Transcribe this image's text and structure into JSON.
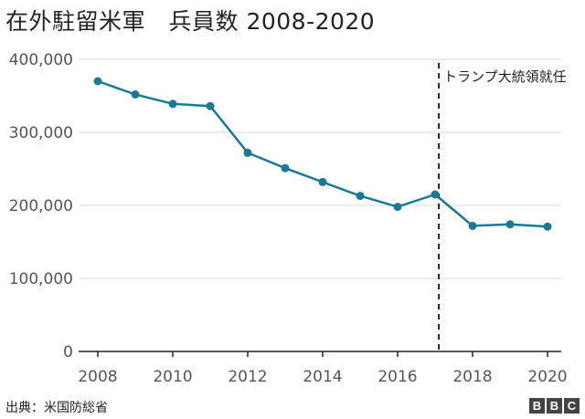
{
  "title": "在外駐留米軍　兵員数  2008-2020",
  "source": "出典：米国防総省",
  "logo": [
    "B",
    "B",
    "C"
  ],
  "colors": {
    "line": "#1a7a96",
    "grid": "#d9d9d9",
    "axis": "#222222",
    "text": "#555555"
  },
  "chart_data": {
    "type": "line",
    "title": "在外駐留米軍　兵員数  2008-2020",
    "xlabel": "",
    "ylabel": "",
    "x": [
      2008,
      2009,
      2010,
      2011,
      2012,
      2013,
      2014,
      2015,
      2016,
      2017,
      2018,
      2019,
      2020
    ],
    "series": [
      {
        "name": "兵員数",
        "values": [
          370000,
          352000,
          339000,
          336000,
          272000,
          251000,
          232000,
          213000,
          198000,
          215000,
          172000,
          174000,
          171000
        ]
      }
    ],
    "xlim": [
      2008,
      2020
    ],
    "ylim": [
      0,
      400000
    ],
    "yticks": [
      0,
      100000,
      200000,
      300000,
      400000
    ],
    "ytick_labels": [
      "0",
      "100,000",
      "200,000",
      "300,000",
      "400,000"
    ],
    "xticks": [
      2008,
      2010,
      2012,
      2014,
      2016,
      2018,
      2020
    ],
    "xtick_labels": [
      "2008",
      "2010",
      "2012",
      "2014",
      "2016",
      "2018",
      "2020"
    ],
    "grid": true,
    "annotations": [
      {
        "x": 2017.1,
        "label": "トランプ大統領就任",
        "style": "dashed-vertical-line"
      }
    ]
  }
}
